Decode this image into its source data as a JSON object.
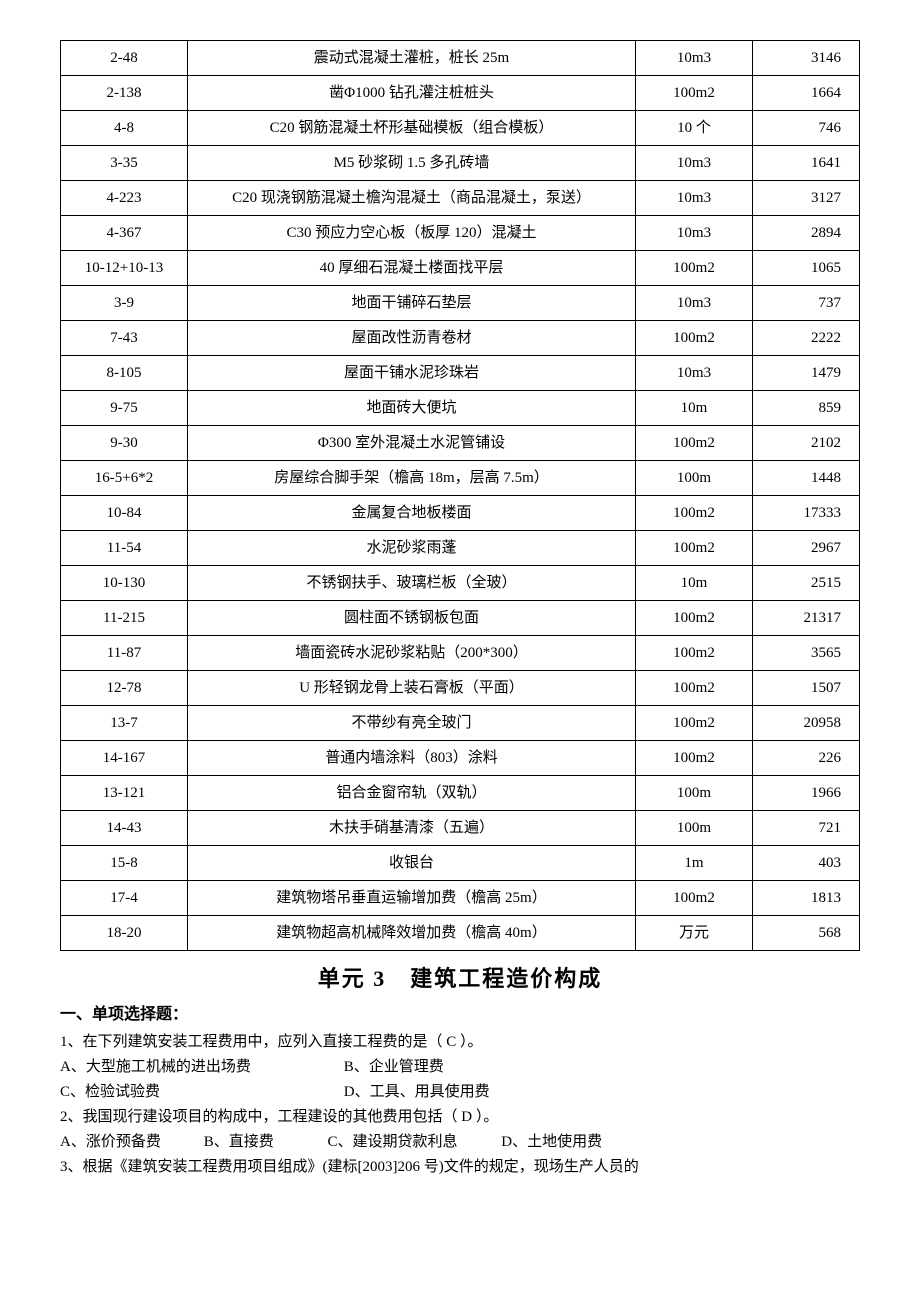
{
  "table": {
    "col_widths": {
      "code": 110,
      "unit": 100,
      "val": 80
    },
    "border_color": "#000000",
    "rows": [
      {
        "code": "2-48",
        "desc": "震动式混凝土灌桩，桩长 25m",
        "unit": "10m3",
        "val": "3146"
      },
      {
        "code": "2-138",
        "desc": "凿Φ1000 钻孔灌注桩桩头",
        "unit": "100m2",
        "val": "1664"
      },
      {
        "code": "4-8",
        "desc": "C20 钢筋混凝土杯形基础模板（组合模板）",
        "unit": "10 个",
        "val": "746"
      },
      {
        "code": "3-35",
        "desc": "M5 砂浆砌 1.5 多孔砖墙",
        "unit": "10m3",
        "val": "1641"
      },
      {
        "code": "4-223",
        "desc": "C20 现浇钢筋混凝土檐沟混凝土（商品混凝土，泵送）",
        "unit": "10m3",
        "val": "3127"
      },
      {
        "code": "4-367",
        "desc": "C30 预应力空心板（板厚 120）混凝土",
        "unit": "10m3",
        "val": "2894"
      },
      {
        "code": "10-12+10-13",
        "desc": "40 厚细石混凝土楼面找平层",
        "unit": "100m2",
        "val": "1065"
      },
      {
        "code": "3-9",
        "desc": "地面干铺碎石垫层",
        "unit": "10m3",
        "val": "737"
      },
      {
        "code": "7-43",
        "desc": "屋面改性沥青卷材",
        "unit": "100m2",
        "val": "2222"
      },
      {
        "code": "8-105",
        "desc": "屋面干铺水泥珍珠岩",
        "unit": "10m3",
        "val": "1479"
      },
      {
        "code": "9-75",
        "desc": "地面砖大便坑",
        "unit": "10m",
        "val": "859"
      },
      {
        "code": "9-30",
        "desc": "Φ300 室外混凝土水泥管铺设",
        "unit": "100m2",
        "val": "2102"
      },
      {
        "code": "16-5+6*2",
        "desc": "房屋综合脚手架（檐高 18m，层高 7.5m）",
        "unit": "100m",
        "val": "1448"
      },
      {
        "code": "10-84",
        "desc": "金属复合地板楼面",
        "unit": "100m2",
        "val": "17333"
      },
      {
        "code": "11-54",
        "desc": "水泥砂浆雨蓬",
        "unit": "100m2",
        "val": "2967"
      },
      {
        "code": "10-130",
        "desc": "不锈钢扶手、玻璃栏板（全玻）",
        "unit": "10m",
        "val": "2515"
      },
      {
        "code": "11-215",
        "desc": "圆柱面不锈钢板包面",
        "unit": "100m2",
        "val": "21317"
      },
      {
        "code": "11-87",
        "desc": "墙面瓷砖水泥砂浆粘贴（200*300）",
        "unit": "100m2",
        "val": "3565"
      },
      {
        "code": "12-78",
        "desc": "U 形轻钢龙骨上装石膏板（平面）",
        "unit": "100m2",
        "val": "1507"
      },
      {
        "code": "13-7",
        "desc": "不带纱有亮全玻门",
        "unit": "100m2",
        "val": "20958"
      },
      {
        "code": "14-167",
        "desc": "普通内墙涂料（803）涂料",
        "unit": "100m2",
        "val": "226"
      },
      {
        "code": "13-121",
        "desc": "铝合金窗帘轨（双轨）",
        "unit": "100m",
        "val": "1966"
      },
      {
        "code": "14-43",
        "desc": "木扶手硝基清漆（五遍）",
        "unit": "100m",
        "val": "721"
      },
      {
        "code": "15-8",
        "desc": "收银台",
        "unit": "1m",
        "val": "403"
      },
      {
        "code": "17-4",
        "desc": "建筑物塔吊垂直运输增加费（檐高 25m）",
        "unit": "100m2",
        "val": "1813"
      },
      {
        "code": "18-20",
        "desc": "建筑物超高机械降效增加费（檐高 40m）",
        "unit": "万元",
        "val": "568"
      }
    ]
  },
  "section": {
    "title": "单元 3　建筑工程造价构成",
    "sub": "一、单项选择题："
  },
  "questions": {
    "q1": {
      "stem": "1、在下列建筑安装工程费用中，应列入直接工程费的是（ C ）。",
      "optA": "A、大型施工机械的进出场费",
      "optB": "B、企业管理费",
      "optC": "C、检验试验费",
      "optD": "D、工具、用具使用费"
    },
    "q2": {
      "stem": "2、我国现行建设项目的构成中，工程建设的其他费用包括（ D ）。",
      "optA": "A、涨价预备费",
      "optB": "B、直接费",
      "optC": "C、建设期贷款利息",
      "optD": "D、土地使用费"
    },
    "q3": {
      "stem": "3、根据《建筑安装工程费用项目组成》(建标[2003]206 号)文件的规定，现场生产人员的"
    }
  },
  "style": {
    "font": "SimSun",
    "font_size_body": 15,
    "font_size_title": 22,
    "background_color": "#ffffff",
    "text_color": "#000000"
  }
}
